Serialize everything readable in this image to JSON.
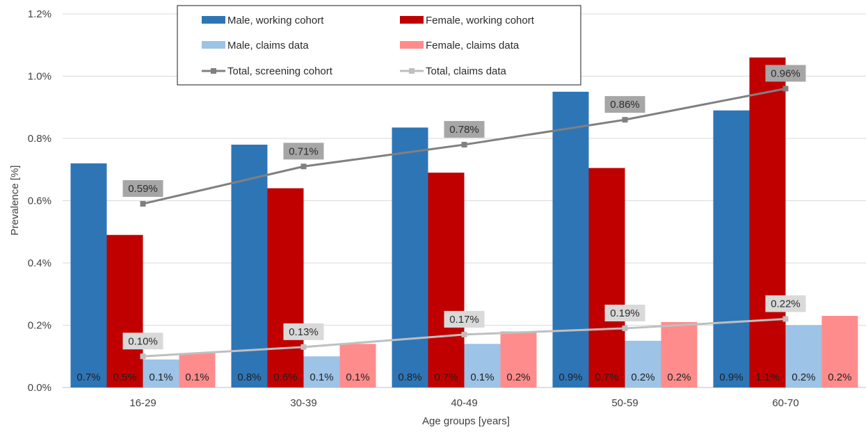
{
  "chart_data": {
    "type": "bar",
    "categories": [
      "16-29",
      "30-39",
      "40-49",
      "50-59",
      "60-70"
    ],
    "xlabel": "Age groups [years]",
    "ylabel": "Prevalence [%]",
    "ylim": [
      0,
      1.2
    ],
    "yticks": [
      "0.0%",
      "0.2%",
      "0.4%",
      "0.6%",
      "0.8%",
      "1.0%",
      "1.2%"
    ],
    "grid": "horizontal",
    "legend_position": "top-center",
    "series": [
      {
        "name": "Male, working cohort",
        "kind": "bar",
        "color": "#2e75b6",
        "values": [
          0.72,
          0.78,
          0.835,
          0.95,
          0.89
        ],
        "labels": [
          "0.7%",
          "0.8%",
          "0.8%",
          "0.9%",
          "0.9%"
        ]
      },
      {
        "name": "Female, working cohort",
        "kind": "bar",
        "color": "#c00000",
        "values": [
          0.49,
          0.64,
          0.69,
          0.705,
          1.06
        ],
        "labels": [
          "0.5%",
          "0.6%",
          "0.7%",
          "0.7%",
          "1.1%"
        ]
      },
      {
        "name": "Male, claims data",
        "kind": "bar",
        "color": "#9dc3e6",
        "values": [
          0.09,
          0.1,
          0.14,
          0.15,
          0.2
        ],
        "labels": [
          "0.1%",
          "0.1%",
          "0.1%",
          "0.2%",
          "0.2%"
        ]
      },
      {
        "name": "Female, claims data",
        "kind": "bar",
        "color": "#ff8c8c",
        "values": [
          0.11,
          0.14,
          0.18,
          0.21,
          0.23
        ],
        "labels": [
          "0.1%",
          "0.1%",
          "0.2%",
          "0.2%",
          "0.2%"
        ]
      },
      {
        "name": "Total, screening cohort",
        "kind": "line",
        "color": "#808080",
        "values": [
          0.59,
          0.71,
          0.78,
          0.86,
          0.96
        ],
        "labels": [
          "0.59%",
          "0.71%",
          "0.78%",
          "0.86%",
          "0.96%"
        ],
        "label_bg": "#a6a6a6"
      },
      {
        "name": "Total, claims data",
        "kind": "line",
        "color": "#bfbfbf",
        "values": [
          0.1,
          0.13,
          0.17,
          0.19,
          0.22
        ],
        "labels": [
          "0.10%",
          "0.13%",
          "0.17%",
          "0.19%",
          "0.22%"
        ],
        "label_bg": "#d9d9d9"
      }
    ]
  }
}
